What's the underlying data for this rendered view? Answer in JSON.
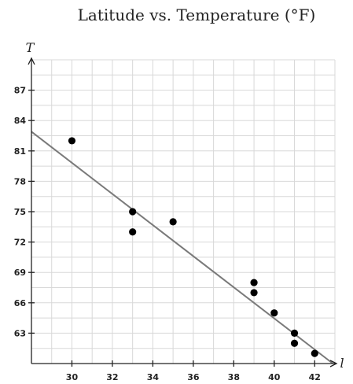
{
  "chart_data": {
    "type": "scatter",
    "title": "Latitude vs. Temperature (°F)",
    "xlabel": "l",
    "ylabel": "T",
    "xlim": [
      28,
      43
    ],
    "ylim": [
      60,
      90
    ],
    "x_ticks": [
      30,
      32,
      34,
      36,
      38,
      40,
      42
    ],
    "y_ticks": [
      63,
      66,
      69,
      72,
      75,
      78,
      81,
      84,
      87
    ],
    "grid": true,
    "points": [
      {
        "x": 30,
        "y": 82
      },
      {
        "x": 33,
        "y": 75
      },
      {
        "x": 33,
        "y": 73
      },
      {
        "x": 35,
        "y": 74
      },
      {
        "x": 39,
        "y": 68
      },
      {
        "x": 39,
        "y": 67
      },
      {
        "x": 40,
        "y": 65
      },
      {
        "x": 41,
        "y": 63
      },
      {
        "x": 41,
        "y": 62
      },
      {
        "x": 42,
        "y": 61
      }
    ],
    "trend_line": {
      "type": "linear",
      "from": {
        "x": 28,
        "y": 82.9
      },
      "to": {
        "x": 42.9,
        "y": 60
      }
    },
    "colors": {
      "points": "#000000",
      "trend_line": "#7a7a7a",
      "grid": "#d8d8d8",
      "axes": "#222222"
    }
  }
}
